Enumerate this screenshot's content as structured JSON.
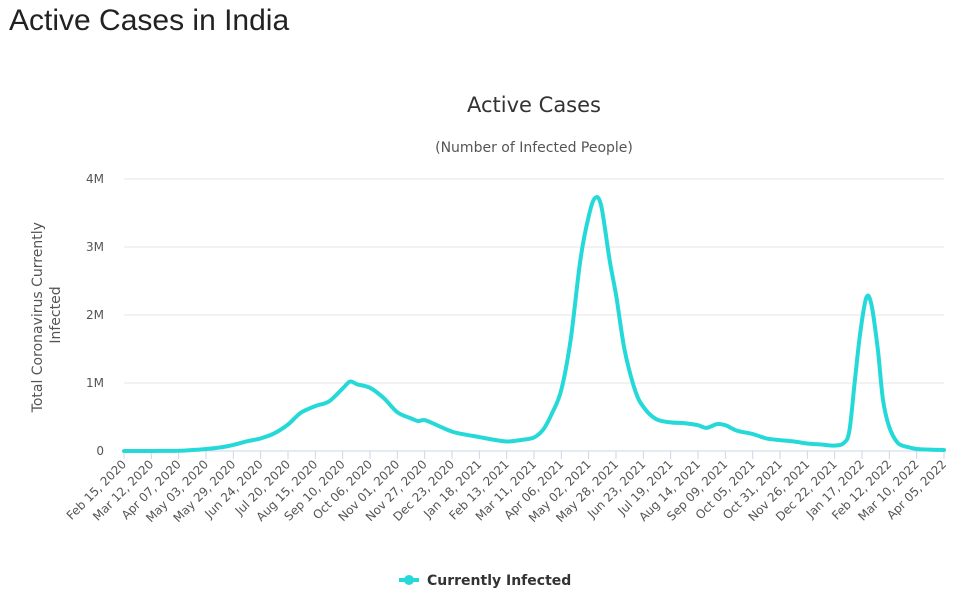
{
  "page": {
    "heading": "Active Cases in India"
  },
  "colors": {
    "series": "#25d9d9",
    "grid": "#e6e6e6",
    "axis": "#ccd6eb",
    "text": "#555555"
  },
  "chart_data": {
    "type": "line",
    "title": "Active Cases",
    "subtitle": "(Number of Infected People)",
    "ylabel_lines": [
      "Total Coronavirus Currently",
      "Infected"
    ],
    "xlabel": "",
    "ylim": [
      0,
      4000000
    ],
    "y_ticks": [
      0,
      1000000,
      2000000,
      3000000,
      4000000
    ],
    "y_tick_labels": [
      "0",
      "1M",
      "2M",
      "3M",
      "4M"
    ],
    "x_ticks": [
      "Feb 15, 2020",
      "Mar 12, 2020",
      "Apr 07, 2020",
      "May 03, 2020",
      "May 29, 2020",
      "Jun 24, 2020",
      "Jul 20, 2020",
      "Aug 15, 2020",
      "Sep 10, 2020",
      "Oct 06, 2020",
      "Nov 01, 2020",
      "Nov 27, 2020",
      "Dec 23, 2020",
      "Jan 18, 2021",
      "Feb 13, 2021",
      "Mar 11, 2021",
      "Apr 06, 2021",
      "May 02, 2021",
      "May 28, 2021",
      "Jun 23, 2021",
      "Jul 19, 2021",
      "Aug 14, 2021",
      "Sep 09, 2021",
      "Oct 05, 2021",
      "Oct 31, 2021",
      "Nov 26, 2021",
      "Dec 22, 2021",
      "Jan 17, 2022",
      "Feb 12, 2022",
      "Mar 10, 2022",
      "Apr 05, 2022"
    ],
    "grid": true,
    "legend_position": "bottom-center",
    "series": [
      {
        "name": "Currently Infected",
        "color": "#25d9d9",
        "points": [
          [
            "Feb 15, 2020",
            0
          ],
          [
            "Mar 12, 2020",
            100
          ],
          [
            "Apr 07, 2020",
            4000
          ],
          [
            "Apr 20, 2020",
            14000
          ],
          [
            "May 03, 2020",
            29000
          ],
          [
            "May 16, 2020",
            52000
          ],
          [
            "May 29, 2020",
            89000
          ],
          [
            "Jun 11, 2020",
            142000
          ],
          [
            "Jun 24, 2020",
            186000
          ],
          [
            "Jul 07, 2020",
            260000
          ],
          [
            "Jul 20, 2020",
            390000
          ],
          [
            "Aug 01, 2020",
            560000
          ],
          [
            "Aug 15, 2020",
            660000
          ],
          [
            "Aug 28, 2020",
            730000
          ],
          [
            "Sep 10, 2020",
            920000
          ],
          [
            "Sep 17, 2020",
            1020000
          ],
          [
            "Sep 24, 2020",
            980000
          ],
          [
            "Oct 06, 2020",
            930000
          ],
          [
            "Oct 19, 2020",
            780000
          ],
          [
            "Nov 01, 2020",
            570000
          ],
          [
            "Nov 14, 2020",
            480000
          ],
          [
            "Nov 21, 2020",
            440000
          ],
          [
            "Nov 27, 2020",
            455000
          ],
          [
            "Dec 10, 2020",
            370000
          ],
          [
            "Dec 23, 2020",
            285000
          ],
          [
            "Jan 05, 2021",
            240000
          ],
          [
            "Jan 18, 2021",
            205000
          ],
          [
            "Jan 31, 2021",
            168000
          ],
          [
            "Feb 13, 2021",
            140000
          ],
          [
            "Feb 26, 2021",
            160000
          ],
          [
            "Mar 11, 2021",
            200000
          ],
          [
            "Mar 20, 2021",
            320000
          ],
          [
            "Mar 28, 2021",
            550000
          ],
          [
            "Apr 06, 2021",
            900000
          ],
          [
            "Apr 15, 2021",
            1650000
          ],
          [
            "Apr 24, 2021",
            2800000
          ],
          [
            "May 02, 2021",
            3450000
          ],
          [
            "May 08, 2021",
            3720000
          ],
          [
            "May 14, 2021",
            3600000
          ],
          [
            "May 22, 2021",
            2800000
          ],
          [
            "May 28, 2021",
            2300000
          ],
          [
            "Jun 05, 2021",
            1500000
          ],
          [
            "Jun 15, 2021",
            900000
          ],
          [
            "Jun 23, 2021",
            650000
          ],
          [
            "Jul 05, 2021",
            470000
          ],
          [
            "Jul 19, 2021",
            420000
          ],
          [
            "Aug 01, 2021",
            410000
          ],
          [
            "Aug 14, 2021",
            380000
          ],
          [
            "Aug 22, 2021",
            340000
          ],
          [
            "Sep 01, 2021",
            395000
          ],
          [
            "Sep 09, 2021",
            380000
          ],
          [
            "Sep 20, 2021",
            300000
          ],
          [
            "Oct 05, 2021",
            250000
          ],
          [
            "Oct 18, 2021",
            185000
          ],
          [
            "Oct 31, 2021",
            160000
          ],
          [
            "Nov 13, 2021",
            140000
          ],
          [
            "Nov 26, 2021",
            110000
          ],
          [
            "Dec 09, 2021",
            95000
          ],
          [
            "Dec 22, 2021",
            80000
          ],
          [
            "Dec 31, 2021",
            120000
          ],
          [
            "Jan 05, 2022",
            300000
          ],
          [
            "Jan 10, 2022",
            1000000
          ],
          [
            "Jan 15, 2022",
            1700000
          ],
          [
            "Jan 21, 2022",
            2250000
          ],
          [
            "Jan 26, 2022",
            2150000
          ],
          [
            "Feb 01, 2022",
            1500000
          ],
          [
            "Feb 06, 2022",
            750000
          ],
          [
            "Feb 12, 2022",
            350000
          ],
          [
            "Feb 20, 2022",
            120000
          ],
          [
            "Mar 01, 2022",
            60000
          ],
          [
            "Mar 10, 2022",
            30000
          ],
          [
            "Mar 22, 2022",
            20000
          ],
          [
            "Apr 05, 2022",
            15000
          ]
        ]
      }
    ]
  }
}
